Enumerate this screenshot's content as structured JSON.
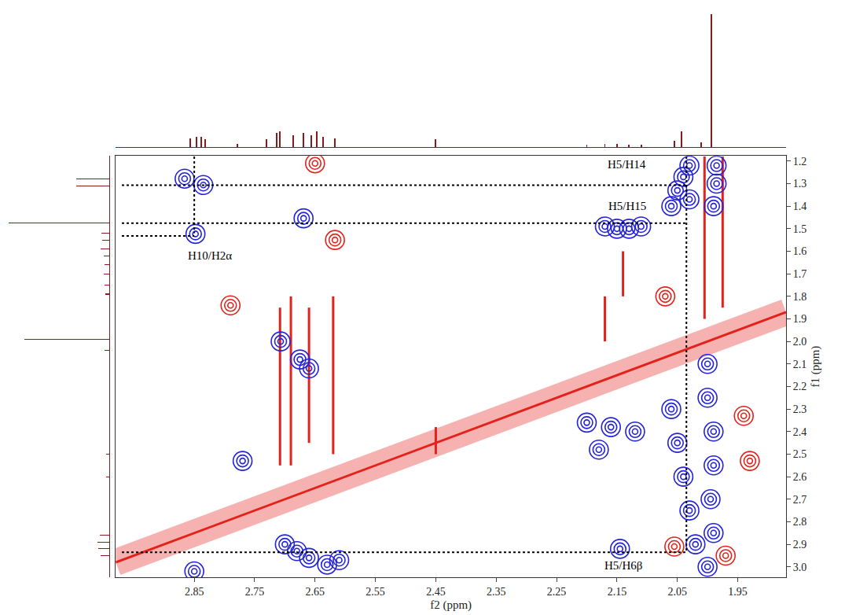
{
  "chart_data": {
    "type": "contour",
    "x_label": "f2 (ppm)",
    "y_label": "f1 (ppm)",
    "xlim": [
      2.98,
      1.87
    ],
    "ylim": [
      3.046,
      1.177
    ],
    "xticks": [
      2.85,
      2.75,
      2.65,
      2.55,
      2.45,
      2.35,
      2.25,
      2.15,
      2.05,
      1.95
    ],
    "yticks": [
      1.2,
      1.3,
      1.4,
      1.5,
      1.6,
      1.7,
      1.8,
      1.9,
      {
        "value": 2,
        "label": "2.0"
      },
      2.1,
      2.2,
      2.3,
      2.4,
      2.5,
      2.6,
      2.7,
      2.8,
      2.9,
      {
        "value": 3,
        "label": "3.0"
      }
    ],
    "grid": false,
    "projections": {
      "f2": {
        "color": "#8b1a1a",
        "lim": [
          -0.02,
          1.05
        ],
        "x": [
          2.857,
          2.846,
          2.838,
          2.832,
          2.779,
          2.731,
          2.714,
          2.708,
          2.686,
          2.669,
          2.656,
          2.647,
          2.637,
          2.617,
          2.45,
          2.2,
          2.17,
          2.15,
          2.13,
          2.11,
          2.055,
          2.043,
          2.01,
          1.994
        ],
        "values": [
          0.07,
          0.08,
          0.08,
          0.06,
          0.03,
          0.06,
          0.11,
          0.12,
          0.09,
          0.11,
          0.09,
          0.12,
          0.08,
          0.07,
          0.06,
          0.02,
          0.03,
          0.03,
          0.02,
          0.02,
          0.05,
          0.12,
          0.04,
          1.0
        ]
      },
      "f1": {
        "color": "#8b1a1a",
        "lim": [
          1.05,
          0
        ],
        "y": [
          1.28,
          1.31,
          1.475,
          1.52,
          1.55,
          1.59,
          1.62,
          1.66,
          1.7,
          1.75,
          1.79,
          1.99,
          2.04,
          2.5,
          2.6,
          2.86,
          2.89,
          2.92,
          2.95
        ],
        "values": [
          0.33,
          0.33,
          1.0,
          0.08,
          0.07,
          0.09,
          0.06,
          0.05,
          0.06,
          0.05,
          0.04,
          0.85,
          0.05,
          0.03,
          0.03,
          0.1,
          0.12,
          0.11,
          0.09
        ]
      }
    },
    "series": [
      {
        "type": "line",
        "line_style": "band",
        "color": "#e3221c",
        "x": [
          2.98,
          1.87
        ],
        "y": [
          2.98,
          1.87
        ]
      },
      {
        "type": "line",
        "line_style": "solid",
        "color": "#e3221c",
        "x": [
          2.708,
          2.708,
          null,
          2.69,
          2.69,
          null,
          2.66,
          2.66,
          null,
          2.62,
          2.62,
          null,
          2.45,
          2.45,
          null,
          2.14,
          2.14,
          null,
          2.17,
          2.17,
          null,
          2.005,
          2.005,
          null,
          1.975,
          1.975
        ],
        "y": [
          1.85,
          2.55,
          null,
          1.8,
          2.55,
          null,
          1.85,
          2.45,
          null,
          1.8,
          2.5,
          null,
          2.38,
          2.5,
          null,
          1.6,
          1.8,
          null,
          1.8,
          2.0,
          null,
          1.18,
          1.9,
          null,
          1.18,
          1.85
        ]
      },
      {
        "type": "scatter",
        "marker": "circle-open",
        "color": "#2323d9",
        "x": [
          2.866,
          2.835,
          2.848,
          2.669,
          2.17,
          2.15,
          2.13,
          2.11,
          2.04,
          2.05,
          2.03,
          2.06,
          2.03,
          1.985,
          1.985,
          1.99,
          2.707,
          2.675,
          2.66,
          2.77,
          2.2,
          2.16,
          2.12,
          2.18,
          2.06,
          2.05,
          2.04,
          2.03,
          2.02,
          2.0,
          2.0,
          1.99,
          1.99,
          1.995,
          1.99,
          2.0,
          2.68,
          2.66,
          2.63,
          2.61,
          2.7,
          2.85,
          2.145
        ],
        "y": [
          1.278,
          1.306,
          1.523,
          1.454,
          1.49,
          1.5,
          1.5,
          1.49,
          1.27,
          1.33,
          1.37,
          1.4,
          1.22,
          1.22,
          1.3,
          1.4,
          2.0,
          2.08,
          2.12,
          2.53,
          2.36,
          2.38,
          2.4,
          2.48,
          2.3,
          2.45,
          2.6,
          2.75,
          2.9,
          2.1,
          2.25,
          2.4,
          2.55,
          2.7,
          2.85,
          3.0,
          2.93,
          2.96,
          2.99,
          2.97,
          2.9,
          3.02,
          2.92
        ]
      },
      {
        "type": "scatter",
        "marker": "circle-open",
        "color": "#e3221c",
        "x": [
          2.617,
          2.65,
          2.79,
          2.055,
          1.97,
          1.94,
          1.93,
          2.07
        ],
        "y": [
          1.55,
          1.21,
          1.84,
          2.91,
          2.95,
          2.33,
          2.53,
          1.8
        ]
      },
      {
        "type": "line",
        "line_style": "dot",
        "color": "#000000",
        "x": [
          2.85,
          2.85,
          null,
          2.97,
          2.035,
          null,
          2.97,
          2.035,
          null,
          2.97,
          2.85,
          null,
          2.97,
          2.035,
          null,
          2.035,
          2.035
        ],
        "y": [
          1.18,
          1.52,
          null,
          1.307,
          1.307,
          null,
          1.475,
          1.475,
          null,
          1.532,
          1.532,
          null,
          2.935,
          2.935,
          null,
          1.18,
          2.935
        ]
      }
    ],
    "annotations": [
      {
        "text": "H10/H2α",
        "x": 2.824,
        "y": 1.62
      },
      {
        "text": "H5/H14",
        "x": 2.133,
        "y": 1.215
      },
      {
        "text": "H5/H15",
        "x": 2.133,
        "y": 1.4
      },
      {
        "text": "H5/H6β",
        "x": 2.14,
        "y": 2.995
      }
    ]
  }
}
